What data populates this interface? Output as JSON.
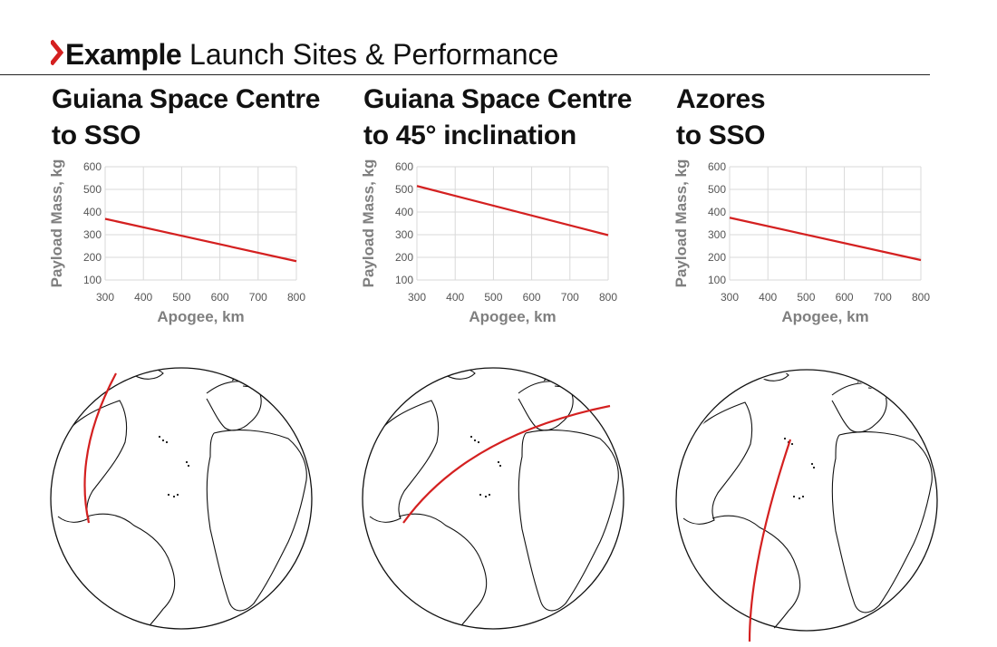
{
  "header": {
    "title_bold": "Example",
    "title_rest": "Launch Sites & Performance"
  },
  "colors": {
    "line": "#d42020",
    "grid": "#d9d9d9",
    "axis_text": "#7f7f7f",
    "accent": "#d42020"
  },
  "icons": {
    "header_marker": "chevron-right-icon"
  },
  "panels": [
    {
      "title_line1": "Guiana Space Centre",
      "title_line2": "to SSO",
      "globe_icon": "globe-icon"
    },
    {
      "title_line1": "Guiana Space Centre",
      "title_line2": "to 45° inclination",
      "globe_icon": "globe-icon"
    },
    {
      "title_line1": "Azores",
      "title_line2": "to SSO",
      "globe_icon": "globe-icon"
    }
  ],
  "chart_data": [
    {
      "type": "line",
      "title": "Guiana Space Centre to SSO",
      "xlabel": "Apogee, km",
      "ylabel": "Payload Mass, kg",
      "xlim": [
        300,
        800
      ],
      "ylim": [
        100,
        600
      ],
      "xticks": [
        300,
        400,
        500,
        600,
        700,
        800
      ],
      "yticks": [
        100,
        200,
        300,
        400,
        500,
        600
      ],
      "grid": true,
      "x": [
        300,
        800
      ],
      "y": [
        370,
        183
      ]
    },
    {
      "type": "line",
      "title": "Guiana Space Centre to 45° inclination",
      "xlabel": "Apogee, km",
      "ylabel": "Payload Mass, kg",
      "xlim": [
        300,
        800
      ],
      "ylim": [
        100,
        600
      ],
      "xticks": [
        300,
        400,
        500,
        600,
        700,
        800
      ],
      "yticks": [
        100,
        200,
        300,
        400,
        500,
        600
      ],
      "grid": true,
      "x": [
        300,
        800
      ],
      "y": [
        515,
        298
      ]
    },
    {
      "type": "line",
      "title": "Azores to SSO",
      "xlabel": "Apogee, km",
      "ylabel": "Payload Mass, kg",
      "xlim": [
        300,
        800
      ],
      "ylim": [
        100,
        600
      ],
      "xticks": [
        300,
        400,
        500,
        600,
        700,
        800
      ],
      "yticks": [
        100,
        200,
        300,
        400,
        500,
        600
      ],
      "grid": true,
      "x": [
        300,
        800
      ],
      "y": [
        375,
        188
      ]
    }
  ]
}
